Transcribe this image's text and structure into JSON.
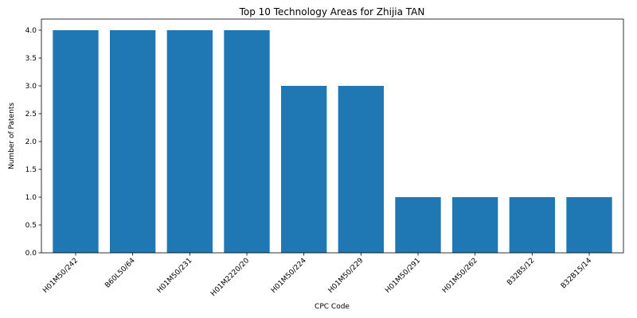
{
  "chart_data": {
    "type": "bar",
    "title": "Top 10 Technology Areas for Zhijia TAN",
    "xlabel": "CPC Code",
    "ylabel": "Number of Patents",
    "categories": [
      "H01M50/242",
      "B60L50/64",
      "H01M50/231",
      "H01M2220/20",
      "H01M50/224",
      "H01M50/229",
      "H01M50/291",
      "H01M50/262",
      "B32B5/12",
      "B32B15/14"
    ],
    "values": [
      4,
      4,
      4,
      4,
      3,
      3,
      1,
      1,
      1,
      1
    ],
    "ylim": [
      0,
      4.2
    ],
    "yticks": [
      "0.0",
      "0.5",
      "1.0",
      "1.5",
      "2.0",
      "2.5",
      "3.0",
      "3.5",
      "4.0"
    ],
    "grid": false,
    "bar_color": "#1f77b4"
  }
}
